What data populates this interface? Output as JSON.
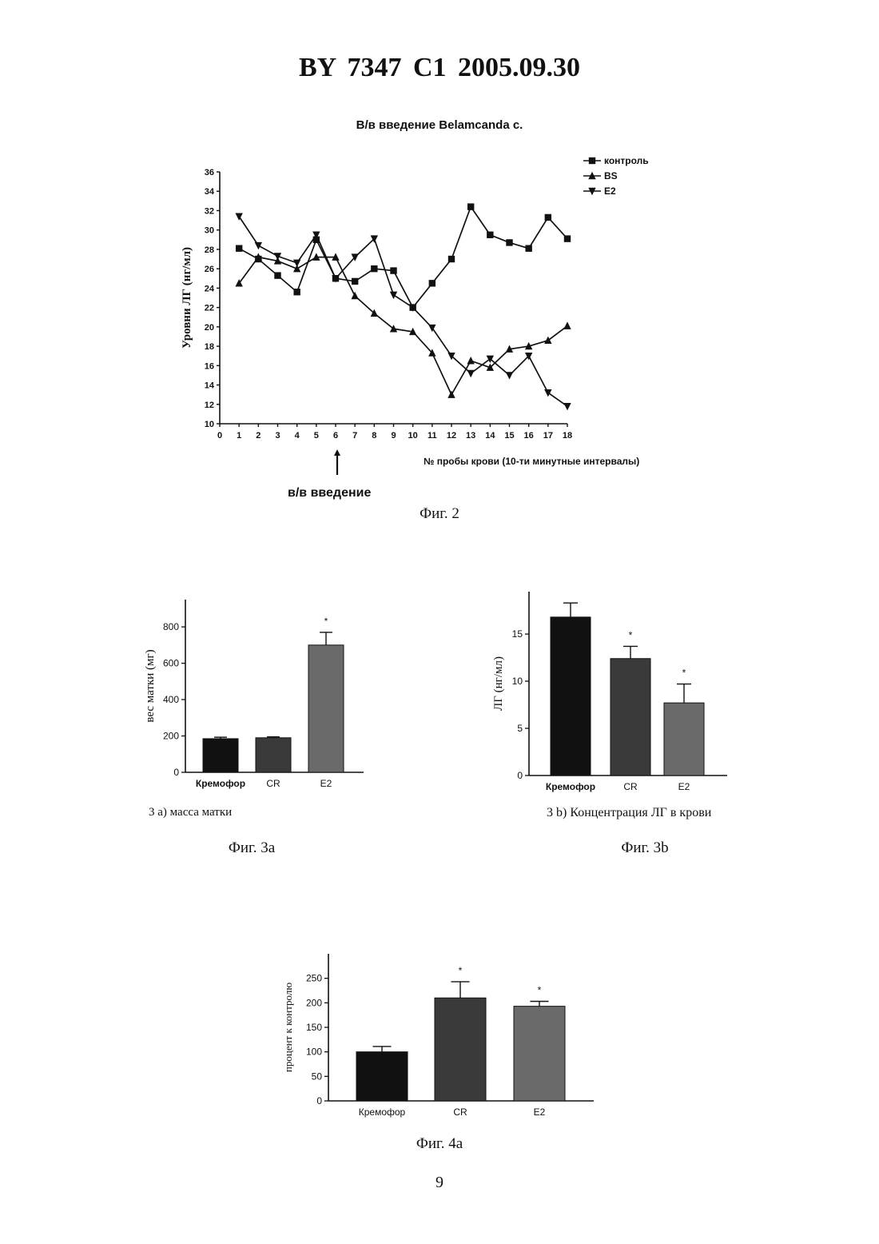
{
  "header": "BY 7347 C1 2005.09.30",
  "page_number": "9",
  "fig2": {
    "caption": "Фиг. 2",
    "arrow_label": "в/в введение"
  },
  "fig3a": {
    "caption": "Фиг. 3a",
    "subcaption": "3 a) масса матки"
  },
  "fig3b": {
    "caption": "Фиг. 3b",
    "subcaption": "3 b) Концентрация ЛГ в крови"
  },
  "fig4a": {
    "caption": "Фиг. 4a"
  },
  "chart_data": [
    {
      "id": "fig2",
      "type": "line",
      "title": "В/в введение Belamcanda c.",
      "xlabel": "№ пробы крови (10-ти минутные интервалы)",
      "ylabel": "Уровни ЛГ    (нг/мл)",
      "xlim": [
        0,
        18
      ],
      "ylim": [
        10,
        36
      ],
      "x": [
        1,
        2,
        3,
        4,
        5,
        6,
        7,
        8,
        9,
        10,
        11,
        12,
        13,
        14,
        15,
        16,
        17,
        18
      ],
      "x_ticks": [
        0,
        1,
        2,
        3,
        4,
        5,
        6,
        7,
        8,
        9,
        10,
        11,
        12,
        13,
        14,
        15,
        16,
        17,
        18
      ],
      "y_ticks": [
        10,
        12,
        14,
        16,
        18,
        20,
        22,
        24,
        26,
        28,
        30,
        32,
        34,
        36
      ],
      "legend_position": "top-right",
      "grid": false,
      "series": [
        {
          "name": "контроль",
          "marker": "square",
          "values": [
            28.1,
            27.0,
            25.3,
            23.6,
            29.0,
            25.0,
            24.7,
            26.0,
            25.8,
            22.0,
            24.5,
            27.0,
            32.4,
            29.5,
            28.7,
            28.1,
            31.3,
            29.1
          ]
        },
        {
          "name": "BS",
          "marker": "triangle-up",
          "values": [
            24.5,
            27.2,
            26.8,
            26.0,
            27.2,
            27.2,
            23.2,
            21.4,
            19.8,
            19.5,
            17.3,
            13.0,
            16.5,
            15.8,
            17.7,
            18.0,
            18.6,
            20.1
          ]
        },
        {
          "name": "E2",
          "marker": "triangle-down",
          "values": [
            31.4,
            28.4,
            27.3,
            26.6,
            29.5,
            25.0,
            27.2,
            29.1,
            23.3,
            22.0,
            19.9,
            17.0,
            15.2,
            16.7,
            15.0,
            17.0,
            13.2,
            11.8
          ]
        }
      ]
    },
    {
      "id": "fig3a",
      "type": "bar",
      "ylabel": "вес матки (мг)",
      "categories": [
        "Кремофор",
        "CR",
        "E2"
      ],
      "values": [
        185,
        190,
        700
      ],
      "errors": [
        8,
        5,
        70
      ],
      "significance": [
        "",
        "",
        "*"
      ],
      "ylim": [
        0,
        950
      ],
      "y_ticks": [
        0,
        200,
        400,
        600,
        800
      ]
    },
    {
      "id": "fig3b",
      "type": "bar",
      "ylabel": "ЛГ (нг/мл)",
      "categories": [
        "Кремофор",
        "CR",
        "E2"
      ],
      "values": [
        16.8,
        12.4,
        7.7
      ],
      "errors": [
        1.5,
        1.3,
        2.0
      ],
      "significance": [
        "",
        "*",
        "*"
      ],
      "ylim": [
        0,
        19.5
      ],
      "y_ticks": [
        0,
        5,
        10,
        15
      ]
    },
    {
      "id": "fig4a",
      "type": "bar",
      "ylabel": "процент к   контролю",
      "categories": [
        "Кремофор",
        "CR",
        "E2"
      ],
      "values": [
        100,
        210,
        193
      ],
      "errors": [
        11,
        33,
        10
      ],
      "significance": [
        "",
        "*",
        "*"
      ],
      "ylim": [
        0,
        300
      ],
      "y_ticks": [
        0,
        50,
        100,
        150,
        200,
        250
      ]
    }
  ],
  "colors": {
    "bar_kremofor": "#111111",
    "bar_cr": "#3a3a3a",
    "bar_e2": "#6a6a6a",
    "ink": "#111111"
  }
}
